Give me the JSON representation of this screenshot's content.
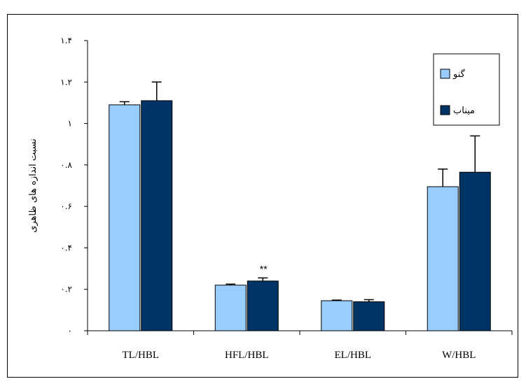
{
  "chart_data": {
    "type": "bar",
    "title": "",
    "xlabel": "",
    "ylabel": "نسبت اندازه های ظاهری",
    "ylim": [
      0,
      1.4
    ],
    "yticks": [
      0,
      0.2,
      0.4,
      0.6,
      0.8,
      1,
      1.2,
      1.4
    ],
    "ytick_labels": [
      "۰",
      "۰.۲",
      "۰.۴",
      "۰.۶",
      "۰.۸",
      "۱",
      "۱.۲",
      "۱.۴"
    ],
    "categories": [
      "TL/HBL",
      "HFL/HBL",
      "EL/HBL",
      "W/HBL"
    ],
    "series": [
      {
        "name": "گنو",
        "values": [
          1.09,
          0.22,
          0.145,
          0.695
        ],
        "errors": [
          0.015,
          0.005,
          0.003,
          0.085
        ],
        "color": "#99ccff"
      },
      {
        "name": "میناب",
        "values": [
          1.11,
          0.24,
          0.14,
          0.765
        ],
        "errors": [
          0.09,
          0.015,
          0.01,
          0.175
        ],
        "color": "#003366"
      }
    ],
    "annotations": [
      {
        "category": "HFL/HBL",
        "text": "**"
      }
    ],
    "legend_position": "top-right",
    "grid": false
  }
}
